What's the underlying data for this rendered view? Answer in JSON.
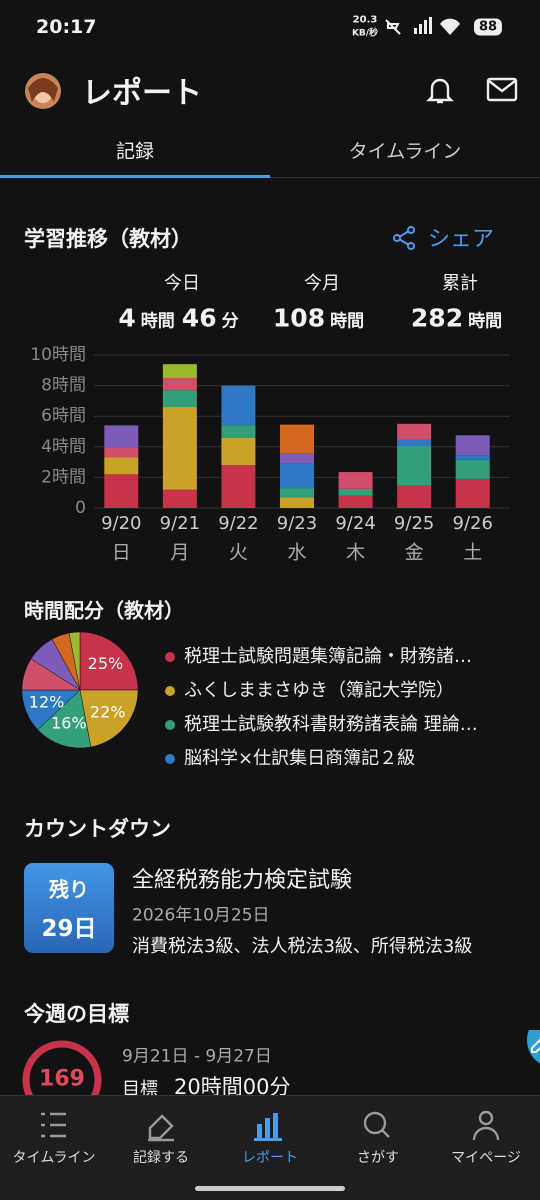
{
  "status_bar": {
    "time": "20:17",
    "speed": "20.3",
    "speed_unit": "KB/秒",
    "battery": "88"
  },
  "header": {
    "title": "レポート"
  },
  "tabs": [
    "記録",
    "タイムライン"
  ],
  "study": {
    "title": "学習推移（教材）",
    "share": "シェア",
    "summary": [
      {
        "label": "今日",
        "parts": [
          "4",
          "時間",
          "46",
          "分"
        ]
      },
      {
        "label": "今月",
        "parts": [
          "108",
          "時間"
        ]
      },
      {
        "label": "累計",
        "parts": [
          "282",
          "時間"
        ]
      }
    ]
  },
  "allocation_title": "時間配分（教材）",
  "chart_data": [
    {
      "type": "bar",
      "stacked": true,
      "grid": true,
      "categories": [
        "9/20",
        "9/21",
        "9/22",
        "9/23",
        "9/24",
        "9/25",
        "9/26"
      ],
      "weekdays": [
        "日",
        "月",
        "火",
        "水",
        "木",
        "金",
        "土"
      ],
      "ylim": [
        0,
        10
      ],
      "yticks": [
        0,
        {
          "value": 2,
          "label": "2時間"
        },
        {
          "value": 4,
          "label": "4時間"
        },
        {
          "value": 6,
          "label": "6時間"
        },
        {
          "value": 8,
          "label": "8時間"
        },
        {
          "value": 10,
          "label": "10時間"
        }
      ],
      "series": [
        {
          "color": "#c8334b",
          "values": [
            2.2,
            1.2,
            2.8,
            null,
            0.8,
            1.45,
            1.9
          ]
        },
        {
          "color": "#c9a227",
          "values": [
            1.1,
            5.4,
            1.8,
            0.7,
            null,
            null,
            null
          ]
        },
        {
          "color": "#34a07a",
          "values": [
            null,
            1.1,
            0.8,
            0.6,
            0.45,
            2.6,
            1.25
          ]
        },
        {
          "color": "#2f78c4",
          "values": [
            null,
            null,
            2.6,
            1.6,
            null,
            0.4,
            0.3
          ]
        },
        {
          "color": "#d04f6a",
          "values": [
            0.65,
            0.8,
            null,
            null,
            1.1,
            1.05,
            null
          ]
        },
        {
          "color": "#7b5cb8",
          "values": [
            1.45,
            null,
            null,
            0.65,
            null,
            null,
            1.3
          ]
        },
        {
          "color": "#d2691e",
          "values": [
            null,
            null,
            null,
            1.9,
            null,
            null,
            null
          ]
        },
        {
          "color": "#9aba2c",
          "values": [
            null,
            0.9,
            null,
            null,
            null,
            null,
            null
          ]
        }
      ]
    },
    {
      "type": "pie",
      "categories": [
        "税理士試験問題集簿記論・財務諸…",
        "ふくしままさゆき（簿記大学院）",
        "税理士試験教科書財務諸表論 理論…",
        "脳科学×仕訳集日商簿記２級",
        null,
        null,
        null,
        null
      ],
      "values": [
        25,
        22,
        16,
        12,
        9,
        8,
        5,
        3
      ],
      "value_labels": [
        "25%",
        "22%",
        "16%",
        "12%",
        null,
        null,
        null,
        null
      ],
      "colors": [
        "#c8334b",
        "#c9a227",
        "#34a07a",
        "#2f78c4",
        "#d04f6a",
        "#7b5cb8",
        "#d2691e",
        "#9aba2c"
      ]
    }
  ],
  "countdown": {
    "title": "カウントダウン",
    "badge_top": "残り",
    "badge_days": "29日",
    "exam": "全経税務能力検定試験",
    "date": "2026年10月25日",
    "subjects": "消費税法3級、法人税法3級、所得税法3級"
  },
  "weekly_goal": {
    "title": "今週の目標",
    "ring_value": "169",
    "range": "9月21日 - 9月27日",
    "goal_label": "目標",
    "goal_value": "20時間00分"
  },
  "nav": [
    "タイムライン",
    "記録する",
    "レポート",
    "さがす",
    "マイページ"
  ]
}
